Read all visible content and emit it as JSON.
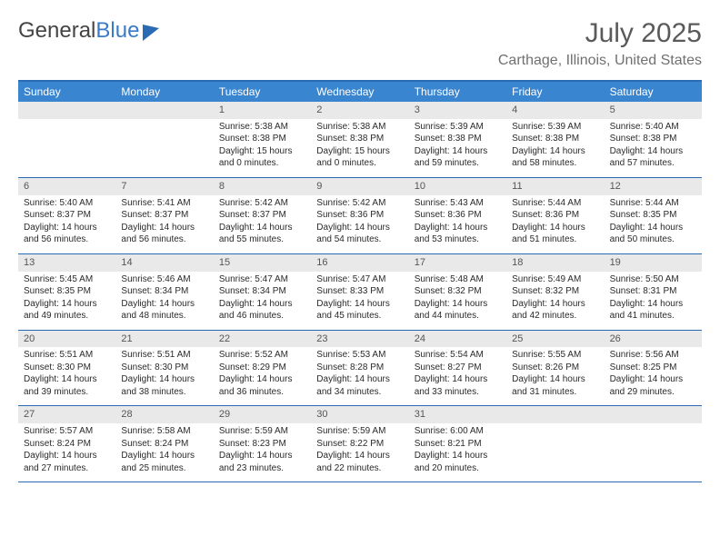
{
  "brand": {
    "part1": "General",
    "part2": "Blue"
  },
  "title": "July 2025",
  "location": "Carthage, Illinois, United States",
  "colors": {
    "header_bg": "#3a85d0",
    "header_text": "#ffffff",
    "border": "#2b6bb3",
    "daynum_bg": "#e9e9e9",
    "text": "#2a2a2a"
  },
  "weekdays": [
    "Sunday",
    "Monday",
    "Tuesday",
    "Wednesday",
    "Thursday",
    "Friday",
    "Saturday"
  ],
  "layout": {
    "first_weekday_index": 2,
    "days_in_month": 31
  },
  "days": {
    "1": {
      "sunrise": "5:38 AM",
      "sunset": "8:38 PM",
      "daylight": "15 hours and 0 minutes."
    },
    "2": {
      "sunrise": "5:38 AM",
      "sunset": "8:38 PM",
      "daylight": "15 hours and 0 minutes."
    },
    "3": {
      "sunrise": "5:39 AM",
      "sunset": "8:38 PM",
      "daylight": "14 hours and 59 minutes."
    },
    "4": {
      "sunrise": "5:39 AM",
      "sunset": "8:38 PM",
      "daylight": "14 hours and 58 minutes."
    },
    "5": {
      "sunrise": "5:40 AM",
      "sunset": "8:38 PM",
      "daylight": "14 hours and 57 minutes."
    },
    "6": {
      "sunrise": "5:40 AM",
      "sunset": "8:37 PM",
      "daylight": "14 hours and 56 minutes."
    },
    "7": {
      "sunrise": "5:41 AM",
      "sunset": "8:37 PM",
      "daylight": "14 hours and 56 minutes."
    },
    "8": {
      "sunrise": "5:42 AM",
      "sunset": "8:37 PM",
      "daylight": "14 hours and 55 minutes."
    },
    "9": {
      "sunrise": "5:42 AM",
      "sunset": "8:36 PM",
      "daylight": "14 hours and 54 minutes."
    },
    "10": {
      "sunrise": "5:43 AM",
      "sunset": "8:36 PM",
      "daylight": "14 hours and 53 minutes."
    },
    "11": {
      "sunrise": "5:44 AM",
      "sunset": "8:36 PM",
      "daylight": "14 hours and 51 minutes."
    },
    "12": {
      "sunrise": "5:44 AM",
      "sunset": "8:35 PM",
      "daylight": "14 hours and 50 minutes."
    },
    "13": {
      "sunrise": "5:45 AM",
      "sunset": "8:35 PM",
      "daylight": "14 hours and 49 minutes."
    },
    "14": {
      "sunrise": "5:46 AM",
      "sunset": "8:34 PM",
      "daylight": "14 hours and 48 minutes."
    },
    "15": {
      "sunrise": "5:47 AM",
      "sunset": "8:34 PM",
      "daylight": "14 hours and 46 minutes."
    },
    "16": {
      "sunrise": "5:47 AM",
      "sunset": "8:33 PM",
      "daylight": "14 hours and 45 minutes."
    },
    "17": {
      "sunrise": "5:48 AM",
      "sunset": "8:32 PM",
      "daylight": "14 hours and 44 minutes."
    },
    "18": {
      "sunrise": "5:49 AM",
      "sunset": "8:32 PM",
      "daylight": "14 hours and 42 minutes."
    },
    "19": {
      "sunrise": "5:50 AM",
      "sunset": "8:31 PM",
      "daylight": "14 hours and 41 minutes."
    },
    "20": {
      "sunrise": "5:51 AM",
      "sunset": "8:30 PM",
      "daylight": "14 hours and 39 minutes."
    },
    "21": {
      "sunrise": "5:51 AM",
      "sunset": "8:30 PM",
      "daylight": "14 hours and 38 minutes."
    },
    "22": {
      "sunrise": "5:52 AM",
      "sunset": "8:29 PM",
      "daylight": "14 hours and 36 minutes."
    },
    "23": {
      "sunrise": "5:53 AM",
      "sunset": "8:28 PM",
      "daylight": "14 hours and 34 minutes."
    },
    "24": {
      "sunrise": "5:54 AM",
      "sunset": "8:27 PM",
      "daylight": "14 hours and 33 minutes."
    },
    "25": {
      "sunrise": "5:55 AM",
      "sunset": "8:26 PM",
      "daylight": "14 hours and 31 minutes."
    },
    "26": {
      "sunrise": "5:56 AM",
      "sunset": "8:25 PM",
      "daylight": "14 hours and 29 minutes."
    },
    "27": {
      "sunrise": "5:57 AM",
      "sunset": "8:24 PM",
      "daylight": "14 hours and 27 minutes."
    },
    "28": {
      "sunrise": "5:58 AM",
      "sunset": "8:24 PM",
      "daylight": "14 hours and 25 minutes."
    },
    "29": {
      "sunrise": "5:59 AM",
      "sunset": "8:23 PM",
      "daylight": "14 hours and 23 minutes."
    },
    "30": {
      "sunrise": "5:59 AM",
      "sunset": "8:22 PM",
      "daylight": "14 hours and 22 minutes."
    },
    "31": {
      "sunrise": "6:00 AM",
      "sunset": "8:21 PM",
      "daylight": "14 hours and 20 minutes."
    }
  },
  "labels": {
    "sunrise_prefix": "Sunrise: ",
    "sunset_prefix": "Sunset: ",
    "daylight_prefix": "Daylight: "
  }
}
